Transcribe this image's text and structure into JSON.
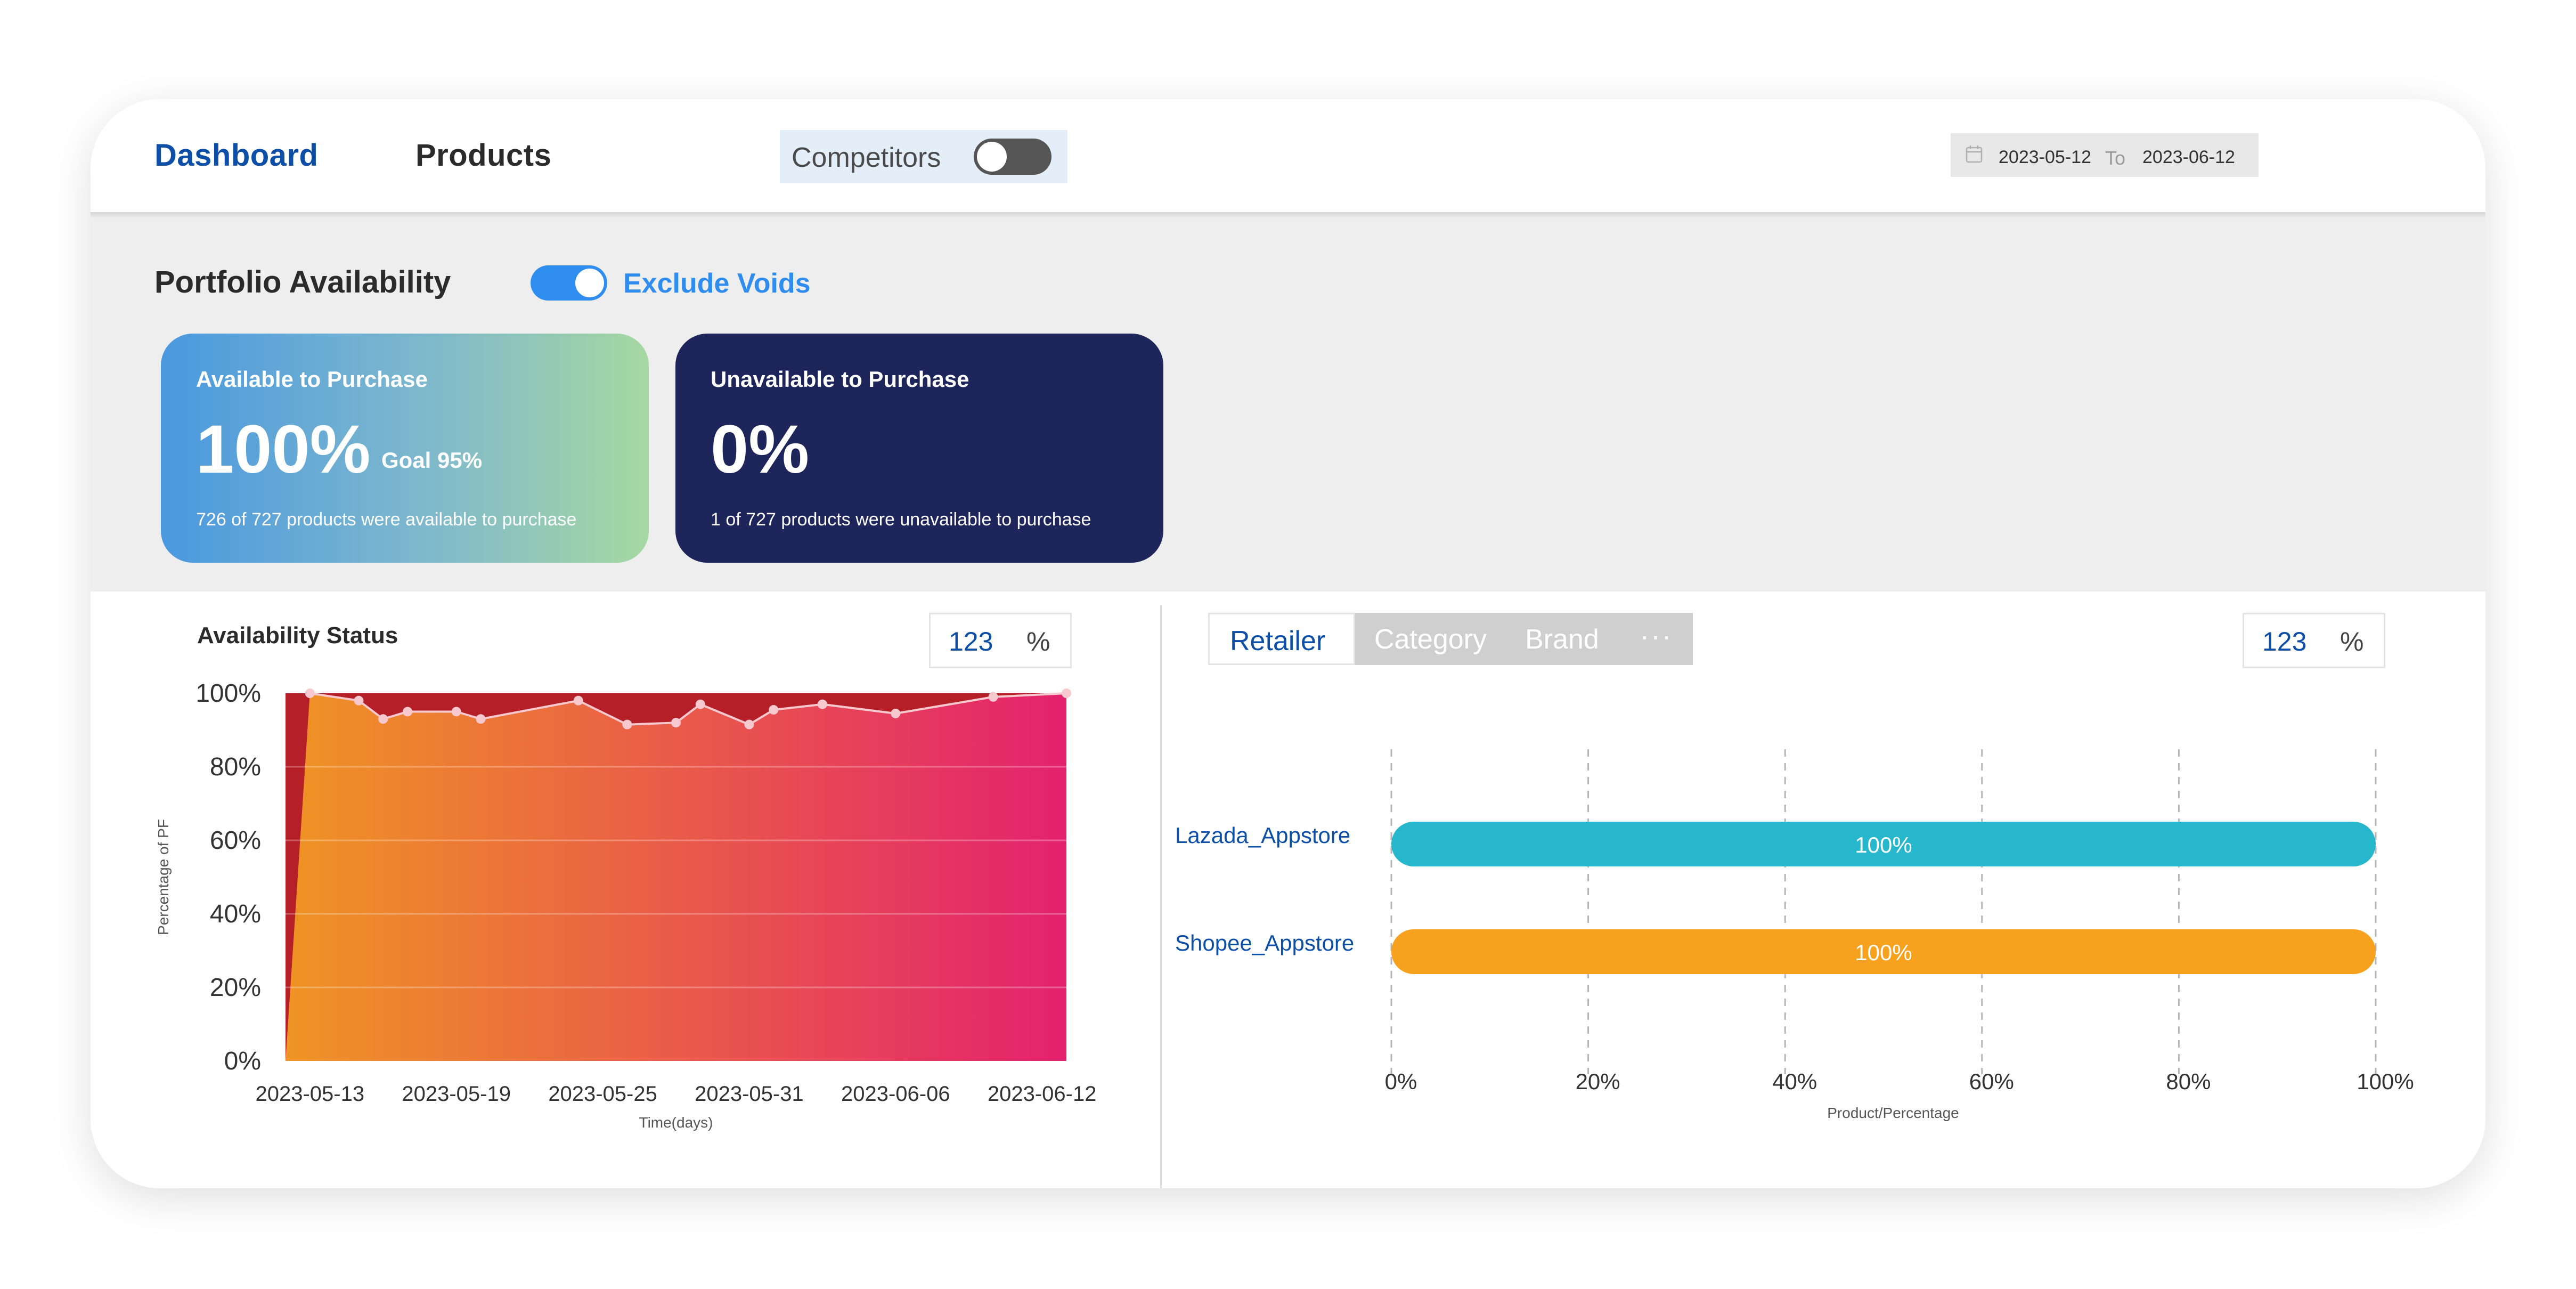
{
  "header": {
    "tabs": [
      {
        "label": "Dashboard",
        "active": true
      },
      {
        "label": "Products",
        "active": false
      }
    ],
    "competitors_label": "Competitors",
    "competitors_enabled": false,
    "date_from": "2023-05-12",
    "date_to_label": "To",
    "date_to": "2023-06-12"
  },
  "portfolio": {
    "title": "Portfolio Availability",
    "exclude_voids_label": "Exclude Voids",
    "exclude_voids_enabled": true,
    "available": {
      "title": "Available to Purchase",
      "value": "100%",
      "goal": "Goal 95%",
      "subtitle": "726 of 727 products were available to purchase"
    },
    "unavailable": {
      "title": "Unavailable to Purchase",
      "value": "0%",
      "subtitle": "1 of 727 products were unavailable to purchase"
    }
  },
  "availability_panel": {
    "title": "Availability Status",
    "unit_number": "123",
    "unit_percent": "%"
  },
  "retailer_panel": {
    "tabs": [
      "Retailer",
      "Category",
      "Brand"
    ],
    "more": "···",
    "unit_number": "123",
    "unit_percent": "%"
  },
  "colors": {
    "primary": "#0d4fa6",
    "toggle_on": "#2f8df0",
    "kpi_dark": "#1e255a",
    "lazada_bar": "#27b7cc",
    "shopee_bar": "#f6a21e",
    "area_start": "#ef9424",
    "area_end": "#e3226e",
    "unavailable_band": "#b51f27"
  },
  "chart_data": [
    {
      "type": "area",
      "title": "Availability Status",
      "xlabel": "Time(days)",
      "ylabel": "Percentage of PF",
      "ylim": [
        0,
        100
      ],
      "yticks": [
        "0%",
        "20%",
        "40%",
        "60%",
        "80%",
        "100%"
      ],
      "xticks": [
        "2023-05-13",
        "2023-05-19",
        "2023-05-25",
        "2023-05-31",
        "2023-06-06",
        "2023-06-12"
      ],
      "grid": true,
      "x": [
        "2023-05-13",
        "2023-05-15",
        "2023-05-16",
        "2023-05-17",
        "2023-05-19",
        "2023-05-20",
        "2023-05-24",
        "2023-05-26",
        "2023-05-28",
        "2023-05-29",
        "2023-05-31",
        "2023-06-01",
        "2023-06-03",
        "2023-06-06",
        "2023-06-10",
        "2023-06-13"
      ],
      "series": [
        {
          "values": [
            100,
            98,
            93,
            95,
            95,
            93,
            98,
            91.5,
            92,
            97,
            91.5,
            95.5,
            97,
            94.5,
            99,
            100
          ]
        }
      ]
    },
    {
      "type": "bar",
      "orientation": "horizontal",
      "xlabel": "Product/Percentage",
      "xlim": [
        0,
        100
      ],
      "xticks": [
        "0%",
        "20%",
        "40%",
        "60%",
        "80%",
        "100%"
      ],
      "categories": [
        "Lazada_Appstore",
        "Shopee_Appstore"
      ],
      "values": [
        100,
        100
      ],
      "value_labels": [
        "100%",
        "100%"
      ]
    }
  ]
}
